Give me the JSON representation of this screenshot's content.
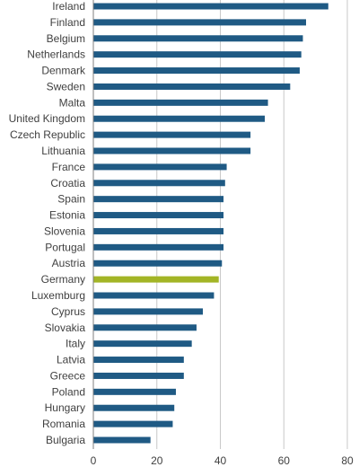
{
  "chart_data": {
    "type": "bar",
    "orientation": "horizontal",
    "title": "",
    "xlabel": "",
    "ylabel": "",
    "categories": [
      "Ireland",
      "Finland",
      "Belgium",
      "Netherlands",
      "Denmark",
      "Sweden",
      "Malta",
      "United Kingdom",
      "Czech Republic",
      "Lithuania",
      "France",
      "Croatia",
      "Spain",
      "Estonia",
      "Slovenia",
      "Portugal",
      "Austria",
      "Germany",
      "Luxemburg",
      "Cyprus",
      "Slovakia",
      "Italy",
      "Latvia",
      "Greece",
      "Poland",
      "Hungary",
      "Romania",
      "Bulgaria"
    ],
    "values": [
      74,
      67,
      66,
      65.5,
      65,
      62,
      55,
      54,
      49.5,
      49.5,
      42,
      41.5,
      41,
      41,
      41,
      41,
      40.5,
      39.5,
      38,
      34.5,
      32.5,
      31,
      28.5,
      28.5,
      26,
      25.5,
      25,
      18
    ],
    "highlight_category": "Germany",
    "xlim": [
      0,
      80
    ],
    "xticks": [
      0,
      20,
      40,
      60,
      80
    ],
    "grid": true,
    "colors": {
      "bar": "#1f5a84",
      "highlight": "#a3b526",
      "grid": "#c8c8c8",
      "text": "#404040"
    }
  }
}
